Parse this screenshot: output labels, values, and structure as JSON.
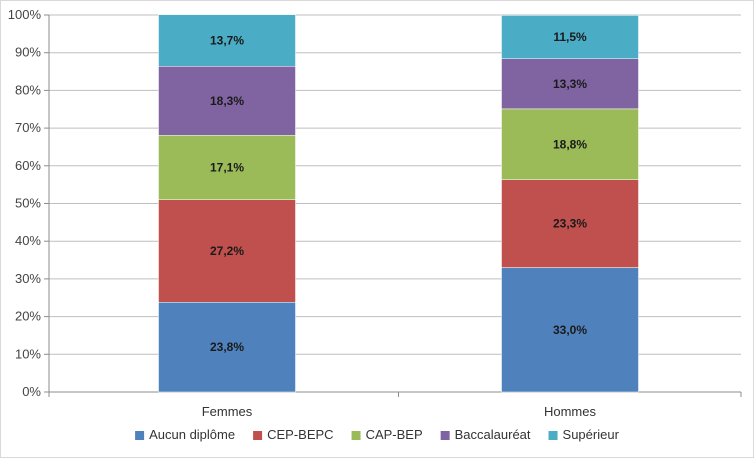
{
  "chart_data": {
    "type": "bar",
    "stacked": true,
    "categories": [
      "Femmes",
      "Hommes"
    ],
    "series": [
      {
        "name": "Aucun diplôme",
        "color": "#4f81bd",
        "values": [
          23.8,
          33.0
        ],
        "labels": [
          "23,8%",
          "33,0%"
        ]
      },
      {
        "name": "CEP-BEPC",
        "color": "#c0504d",
        "values": [
          27.2,
          23.3
        ],
        "labels": [
          "27,2%",
          "23,3%"
        ]
      },
      {
        "name": "CAP-BEP",
        "color": "#9bbb59",
        "values": [
          17.1,
          18.8
        ],
        "labels": [
          "17,1%",
          "18,8%"
        ]
      },
      {
        "name": "Baccalauréat",
        "color": "#8064a2",
        "values": [
          18.3,
          13.3
        ],
        "labels": [
          "18,3%",
          "13,3%"
        ]
      },
      {
        "name": "Supérieur",
        "color": "#4bacc6",
        "values": [
          13.7,
          11.5
        ],
        "labels": [
          "13,7%",
          "11,5%"
        ]
      }
    ],
    "yticks": [
      "0%",
      "10%",
      "20%",
      "30%",
      "40%",
      "50%",
      "60%",
      "70%",
      "80%",
      "90%",
      "100%"
    ],
    "ylim": [
      0,
      100
    ],
    "grid": true,
    "legend": "bottom",
    "title": "",
    "xlabel": "",
    "ylabel": ""
  }
}
